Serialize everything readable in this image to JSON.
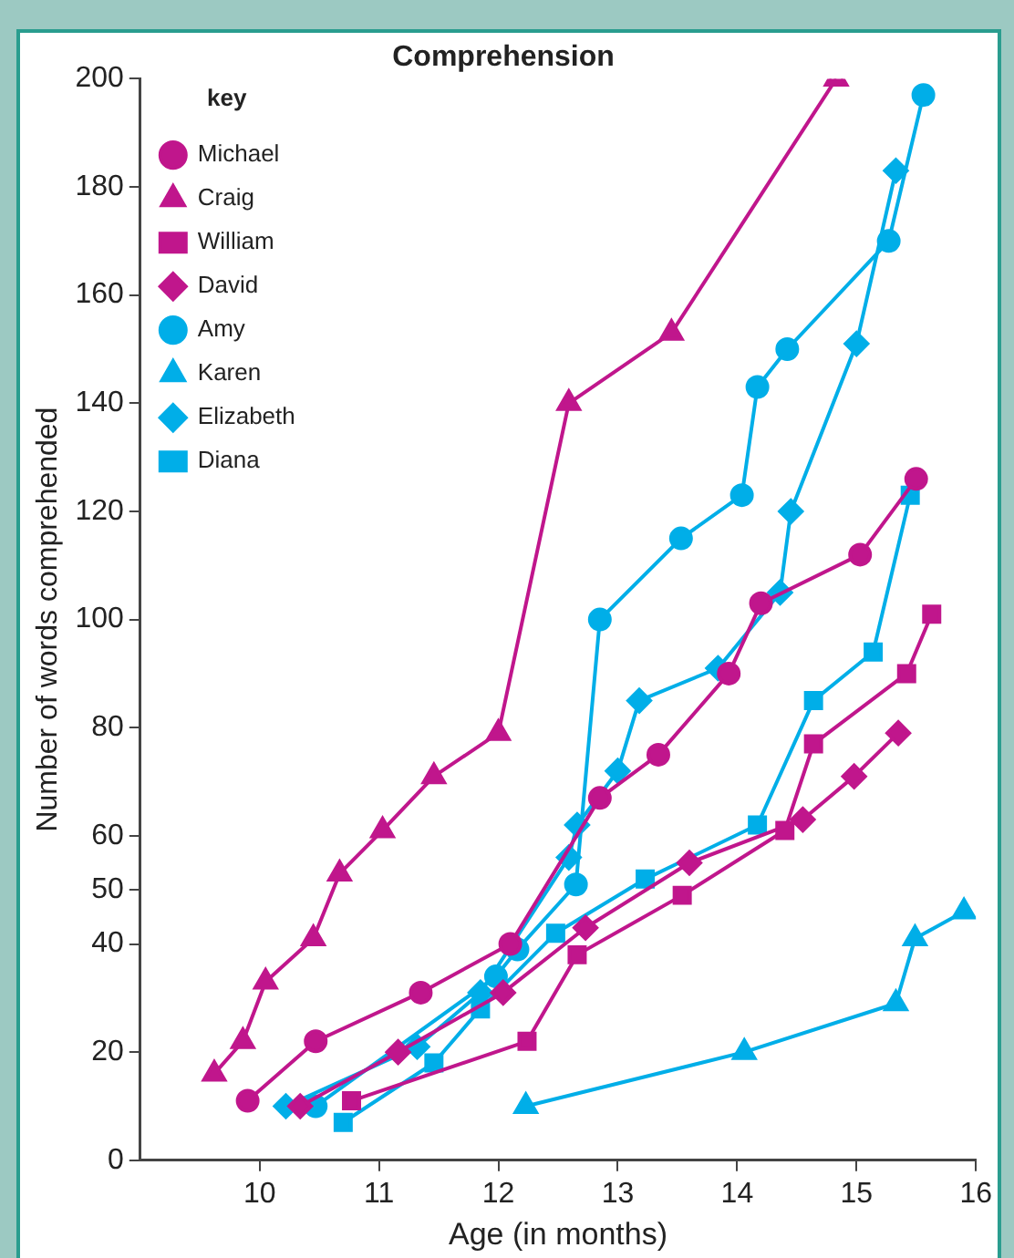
{
  "chart_data": {
    "type": "line",
    "title": "Comprehension",
    "xlabel": "Age (in months)",
    "ylabel": "Number of words comprehended",
    "legend_title": "key",
    "legend": "top left",
    "grid": false,
    "line_style": "solid",
    "xlim": [
      9,
      16
    ],
    "xticks": [
      10,
      11,
      12,
      13,
      14,
      15,
      16
    ],
    "ylim": [
      0,
      200
    ],
    "yticks": [
      0,
      20,
      40,
      50,
      60,
      80,
      100,
      120,
      140,
      160,
      180,
      200
    ],
    "series": [
      {
        "name": "Michael",
        "color": "#c0168c",
        "marker": "circle",
        "x": [
          9.9,
          10.47,
          11.35,
          12.1,
          12.85,
          13.34,
          13.93,
          14.2,
          15.03,
          15.5
        ],
        "values": [
          11,
          22,
          31,
          40,
          67,
          75,
          90,
          103,
          112,
          126
        ]
      },
      {
        "name": "Craig",
        "color": "#c0168c",
        "marker": "triangle",
        "x": [
          9.62,
          9.86,
          10.05,
          10.45,
          10.67,
          11.03,
          11.46,
          12.0,
          12.59,
          13.45,
          14.83
        ],
        "values": [
          16,
          22,
          33,
          41,
          53,
          61,
          71,
          79,
          140,
          153,
          200
        ]
      },
      {
        "name": "William",
        "color": "#c0168c",
        "marker": "square",
        "x": [
          10.77,
          12.24,
          12.66,
          13.54,
          14.4,
          14.64,
          15.42,
          15.63
        ],
        "values": [
          11,
          22,
          38,
          49,
          61,
          77,
          90,
          101
        ]
      },
      {
        "name": "David",
        "color": "#c0168c",
        "marker": "diamond",
        "x": [
          10.34,
          11.16,
          12.04,
          12.73,
          13.6,
          14.55,
          14.98,
          15.35
        ],
        "values": [
          10,
          20,
          31,
          43,
          55,
          63,
          71,
          79
        ]
      },
      {
        "name": "Amy",
        "color": "#00aee8",
        "marker": "circle",
        "x": [
          10.47,
          11.98,
          12.16,
          12.65,
          12.85,
          13.53,
          14.04,
          14.17,
          14.42,
          15.27,
          15.56
        ],
        "values": [
          10,
          34,
          39,
          51,
          100,
          115,
          123,
          143,
          150,
          170,
          197
        ]
      },
      {
        "name": "Karen",
        "color": "#00aee8",
        "marker": "triangle",
        "x": [
          12.23,
          14.06,
          15.33,
          15.49,
          15.9
        ],
        "values": [
          10,
          20,
          29,
          41,
          46
        ]
      },
      {
        "name": "Elizabeth",
        "color": "#00aee8",
        "marker": "diamond",
        "x": [
          10.22,
          11.32,
          11.85,
          12.59,
          12.66,
          13.0,
          13.18,
          13.84,
          14.36,
          14.45,
          15.0,
          15.33
        ],
        "values": [
          10,
          21,
          31,
          56,
          62,
          72,
          85,
          91,
          105,
          120,
          151,
          183
        ]
      },
      {
        "name": "Diana",
        "color": "#00aee8",
        "marker": "square",
        "x": [
          10.7,
          11.46,
          11.85,
          12.48,
          13.23,
          14.17,
          14.64,
          15.14,
          15.45
        ],
        "values": [
          7,
          18,
          28,
          42,
          52,
          62,
          85,
          94,
          123
        ]
      }
    ]
  }
}
